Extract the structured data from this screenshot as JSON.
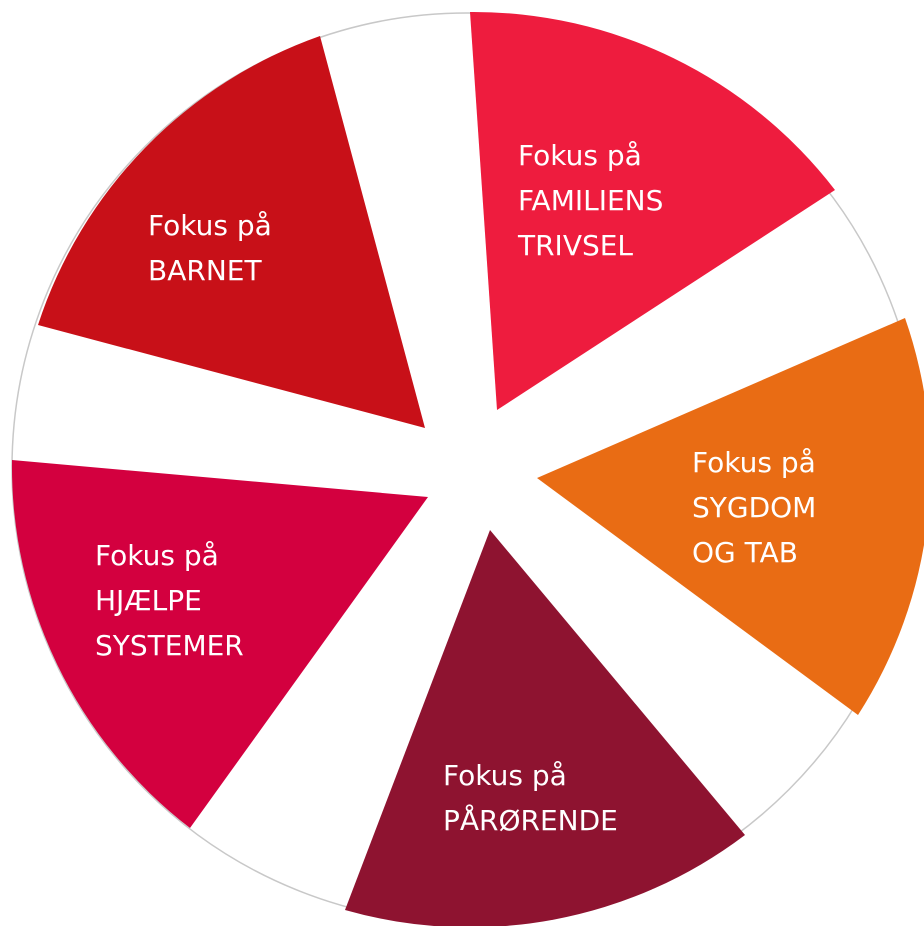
{
  "segments": [
    {
      "lines": [
        "Fokus på",
        "FAMILIENS",
        "TRIVSEL"
      ]
    },
    {
      "lines": [
        "Fokus på",
        "SYGDOM",
        "OG TAB"
      ]
    },
    {
      "lines": [
        "Fokus på",
        "PÅRØRENDE"
      ]
    },
    {
      "lines": [
        "Fokus på",
        "HJÆLPE",
        "SYSTEMER"
      ]
    },
    {
      "lines": [
        "Fokus på",
        "BARNET"
      ]
    }
  ]
}
